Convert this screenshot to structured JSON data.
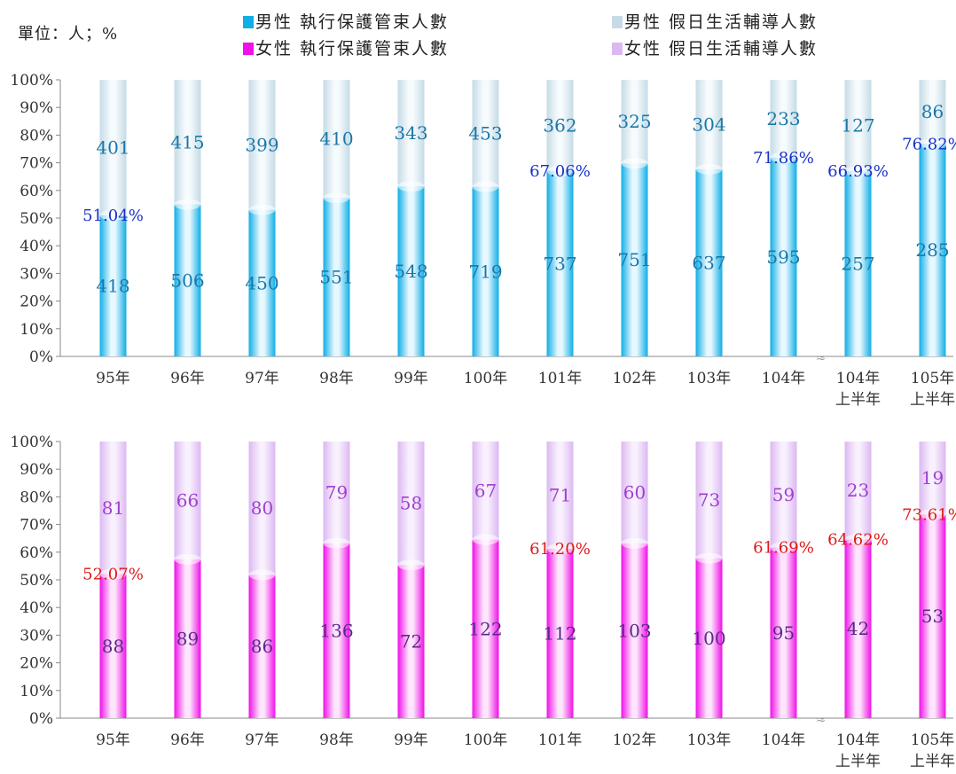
{
  "unit_label": "單位：人；%",
  "colors": {
    "male_exec": "#10aee6",
    "male_holiday": "#c6dbe6",
    "female_exec": "#f010e8",
    "female_holiday": "#dcb8f2",
    "male_value_text": "#1a78a8",
    "male_pct_text": "#1a30c8",
    "female_value_text": "#5a2a8a",
    "female_holiday_text": "#a040d0",
    "female_pct_text": "#e01818"
  },
  "legend": [
    {
      "label": "男性 執行保護管束人數",
      "color": "#10aee6"
    },
    {
      "label": "男性 假日生活輔導人數",
      "color": "#c6dbe6"
    },
    {
      "label": "女性 執行保護管束人數",
      "color": "#f010e8"
    },
    {
      "label": "女性 假日生活輔導人數",
      "color": "#dcb8f2"
    }
  ],
  "chart_data": [
    {
      "type": "bar",
      "stacked": "percent",
      "categories": [
        [
          "95年"
        ],
        [
          "96年"
        ],
        [
          "97年"
        ],
        [
          "98年"
        ],
        [
          "99年"
        ],
        [
          "100年"
        ],
        [
          "101年"
        ],
        [
          "102年"
        ],
        [
          "103年"
        ],
        [
          "104年"
        ],
        [
          "104年",
          "上半年"
        ],
        [
          "105年",
          "上半年"
        ]
      ],
      "y_ticks": [
        "0%",
        "10%",
        "20%",
        "30%",
        "40%",
        "50%",
        "60%",
        "70%",
        "80%",
        "90%",
        "100%"
      ],
      "ylim": [
        0,
        100
      ],
      "series": [
        {
          "name": "男性 執行保護管束人數",
          "values": [
            418,
            506,
            450,
            551,
            548,
            719,
            737,
            751,
            637,
            595,
            257,
            285
          ]
        },
        {
          "name": "男性 假日生活輔導人數",
          "values": [
            401,
            415,
            399,
            410,
            343,
            453,
            362,
            325,
            304,
            233,
            127,
            86
          ]
        }
      ],
      "share_labels": [
        {
          "index": 0,
          "text": "51.04%"
        },
        {
          "index": 6,
          "text": "67.06%"
        },
        {
          "index": 9,
          "text": "71.86%"
        },
        {
          "index": 10,
          "text": "66.93%"
        },
        {
          "index": 11,
          "text": "76.82%"
        }
      ],
      "axis_break_after_index": 9
    },
    {
      "type": "bar",
      "stacked": "percent",
      "categories": [
        [
          "95年"
        ],
        [
          "96年"
        ],
        [
          "97年"
        ],
        [
          "98年"
        ],
        [
          "99年"
        ],
        [
          "100年"
        ],
        [
          "101年"
        ],
        [
          "102年"
        ],
        [
          "103年"
        ],
        [
          "104年"
        ],
        [
          "104年",
          "上半年"
        ],
        [
          "105年",
          "上半年"
        ]
      ],
      "y_ticks": [
        "0%",
        "10%",
        "20%",
        "30%",
        "40%",
        "50%",
        "60%",
        "70%",
        "80%",
        "90%",
        "100%"
      ],
      "ylim": [
        0,
        100
      ],
      "series": [
        {
          "name": "女性 執行保護管束人數",
          "values": [
            88,
            89,
            86,
            136,
            72,
            122,
            112,
            103,
            100,
            95,
            42,
            53
          ]
        },
        {
          "name": "女性 假日生活輔導人數",
          "values": [
            81,
            66,
            80,
            79,
            58,
            67,
            71,
            60,
            73,
            59,
            23,
            19
          ]
        }
      ],
      "share_labels": [
        {
          "index": 0,
          "text": "52.07%"
        },
        {
          "index": 6,
          "text": "61.20%"
        },
        {
          "index": 9,
          "text": "61.69%"
        },
        {
          "index": 10,
          "text": "64.62%"
        },
        {
          "index": 11,
          "text": "73.61%"
        }
      ],
      "axis_break_after_index": 9
    }
  ]
}
